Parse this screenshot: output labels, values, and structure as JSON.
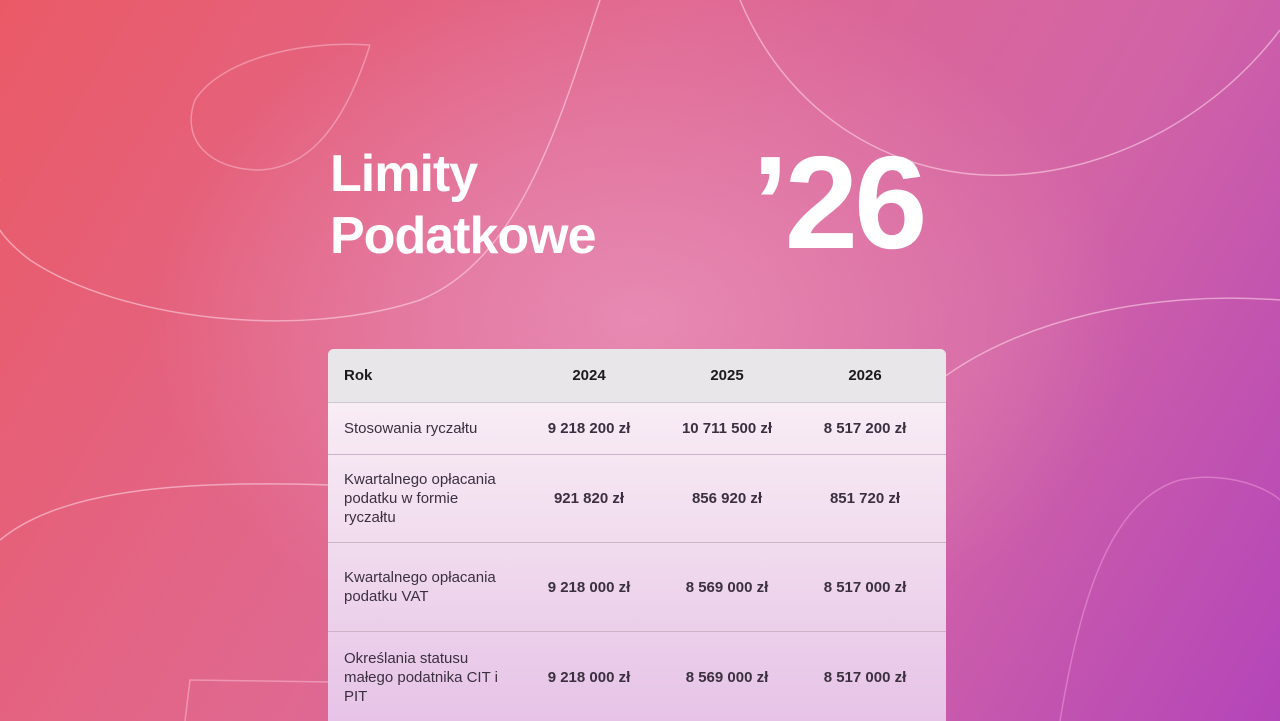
{
  "title": {
    "line1": "Limity",
    "line2": "Podatkowe",
    "year": "’26"
  },
  "colors": {
    "bg_start": "#ea5a66",
    "bg_mid": "#e78ab2",
    "bg_end": "#b445b9",
    "text": "#ffffff"
  },
  "table": {
    "headers": [
      "Rok",
      "2024",
      "2025",
      "2026"
    ],
    "rows": [
      {
        "label": "Stosowania ryczałtu",
        "values": [
          "9 218 200 zł",
          "10 711 500 zł",
          "8 517 200 zł"
        ]
      },
      {
        "label": "Kwartalnego opłacania podatku w formie ryczałtu",
        "values": [
          "921 820 zł",
          "856 920 zł",
          "851 720 zł"
        ]
      },
      {
        "label": "Kwartalnego opłacania podatku VAT",
        "values": [
          "9 218 000 zł",
          "8 569 000 zł",
          "8 517 000 zł"
        ]
      },
      {
        "label": "Określania statusu małego podatnika CIT i PIT",
        "values": [
          "9 218 000 zł",
          "8 569 000 zł",
          "8 517 000 zł"
        ]
      }
    ]
  }
}
